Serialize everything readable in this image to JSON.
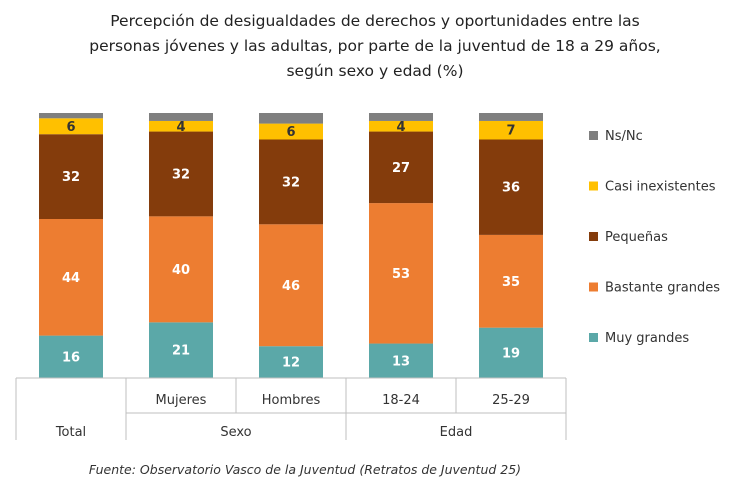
{
  "chart_data": {
    "type": "bar",
    "stacked": true,
    "normalized": true,
    "title": "Percepción de desigualdades de derechos y oportunidades entre las personas jóvenes y las adultas, por parte de la juventud de 18 a 29 años, según sexo y edad (%)",
    "title_lines": [
      "Percepción de desigualdades de derechos y oportunidades entre las",
      "personas jóvenes y las adultas, por parte de la juventud de 18 a 29 años,",
      "según sexo y edad (%)"
    ],
    "categories": [
      "Total",
      "Mujeres",
      "Hombres",
      "18-24",
      "25-29"
    ],
    "groups": [
      {
        "label": "Total",
        "categories": [
          "Total"
        ]
      },
      {
        "label": "Sexo",
        "categories": [
          "Mujeres",
          "Hombres"
        ]
      },
      {
        "label": "Edad",
        "categories": [
          "18-24",
          "25-29"
        ]
      }
    ],
    "series": [
      {
        "name": "Muy grandes",
        "color": "#5ba8a8",
        "values": [
          16,
          21,
          12,
          13,
          19
        ]
      },
      {
        "name": "Bastante grandes",
        "color": "#ed7d31",
        "values": [
          44,
          40,
          46,
          53,
          35
        ]
      },
      {
        "name": "Pequeñas",
        "color": "#843c0c",
        "values": [
          32,
          32,
          32,
          27,
          36
        ]
      },
      {
        "name": "Casi inexistentes",
        "color": "#ffc000",
        "values": [
          6,
          4,
          6,
          4,
          7
        ]
      },
      {
        "name": "Ns/Nc",
        "color": "#7f7f7f",
        "values": [
          2,
          3,
          4,
          3,
          3
        ]
      }
    ],
    "legend_order": [
      "Ns/Nc",
      "Casi inexistentes",
      "Pequeñas",
      "Bastante grandes",
      "Muy grandes"
    ],
    "legend_position": "right",
    "ylim": [
      0,
      100
    ],
    "grid": false,
    "source": "Fuente: Observatorio Vasco de la Juventud (Retratos de Juventud 25)"
  }
}
